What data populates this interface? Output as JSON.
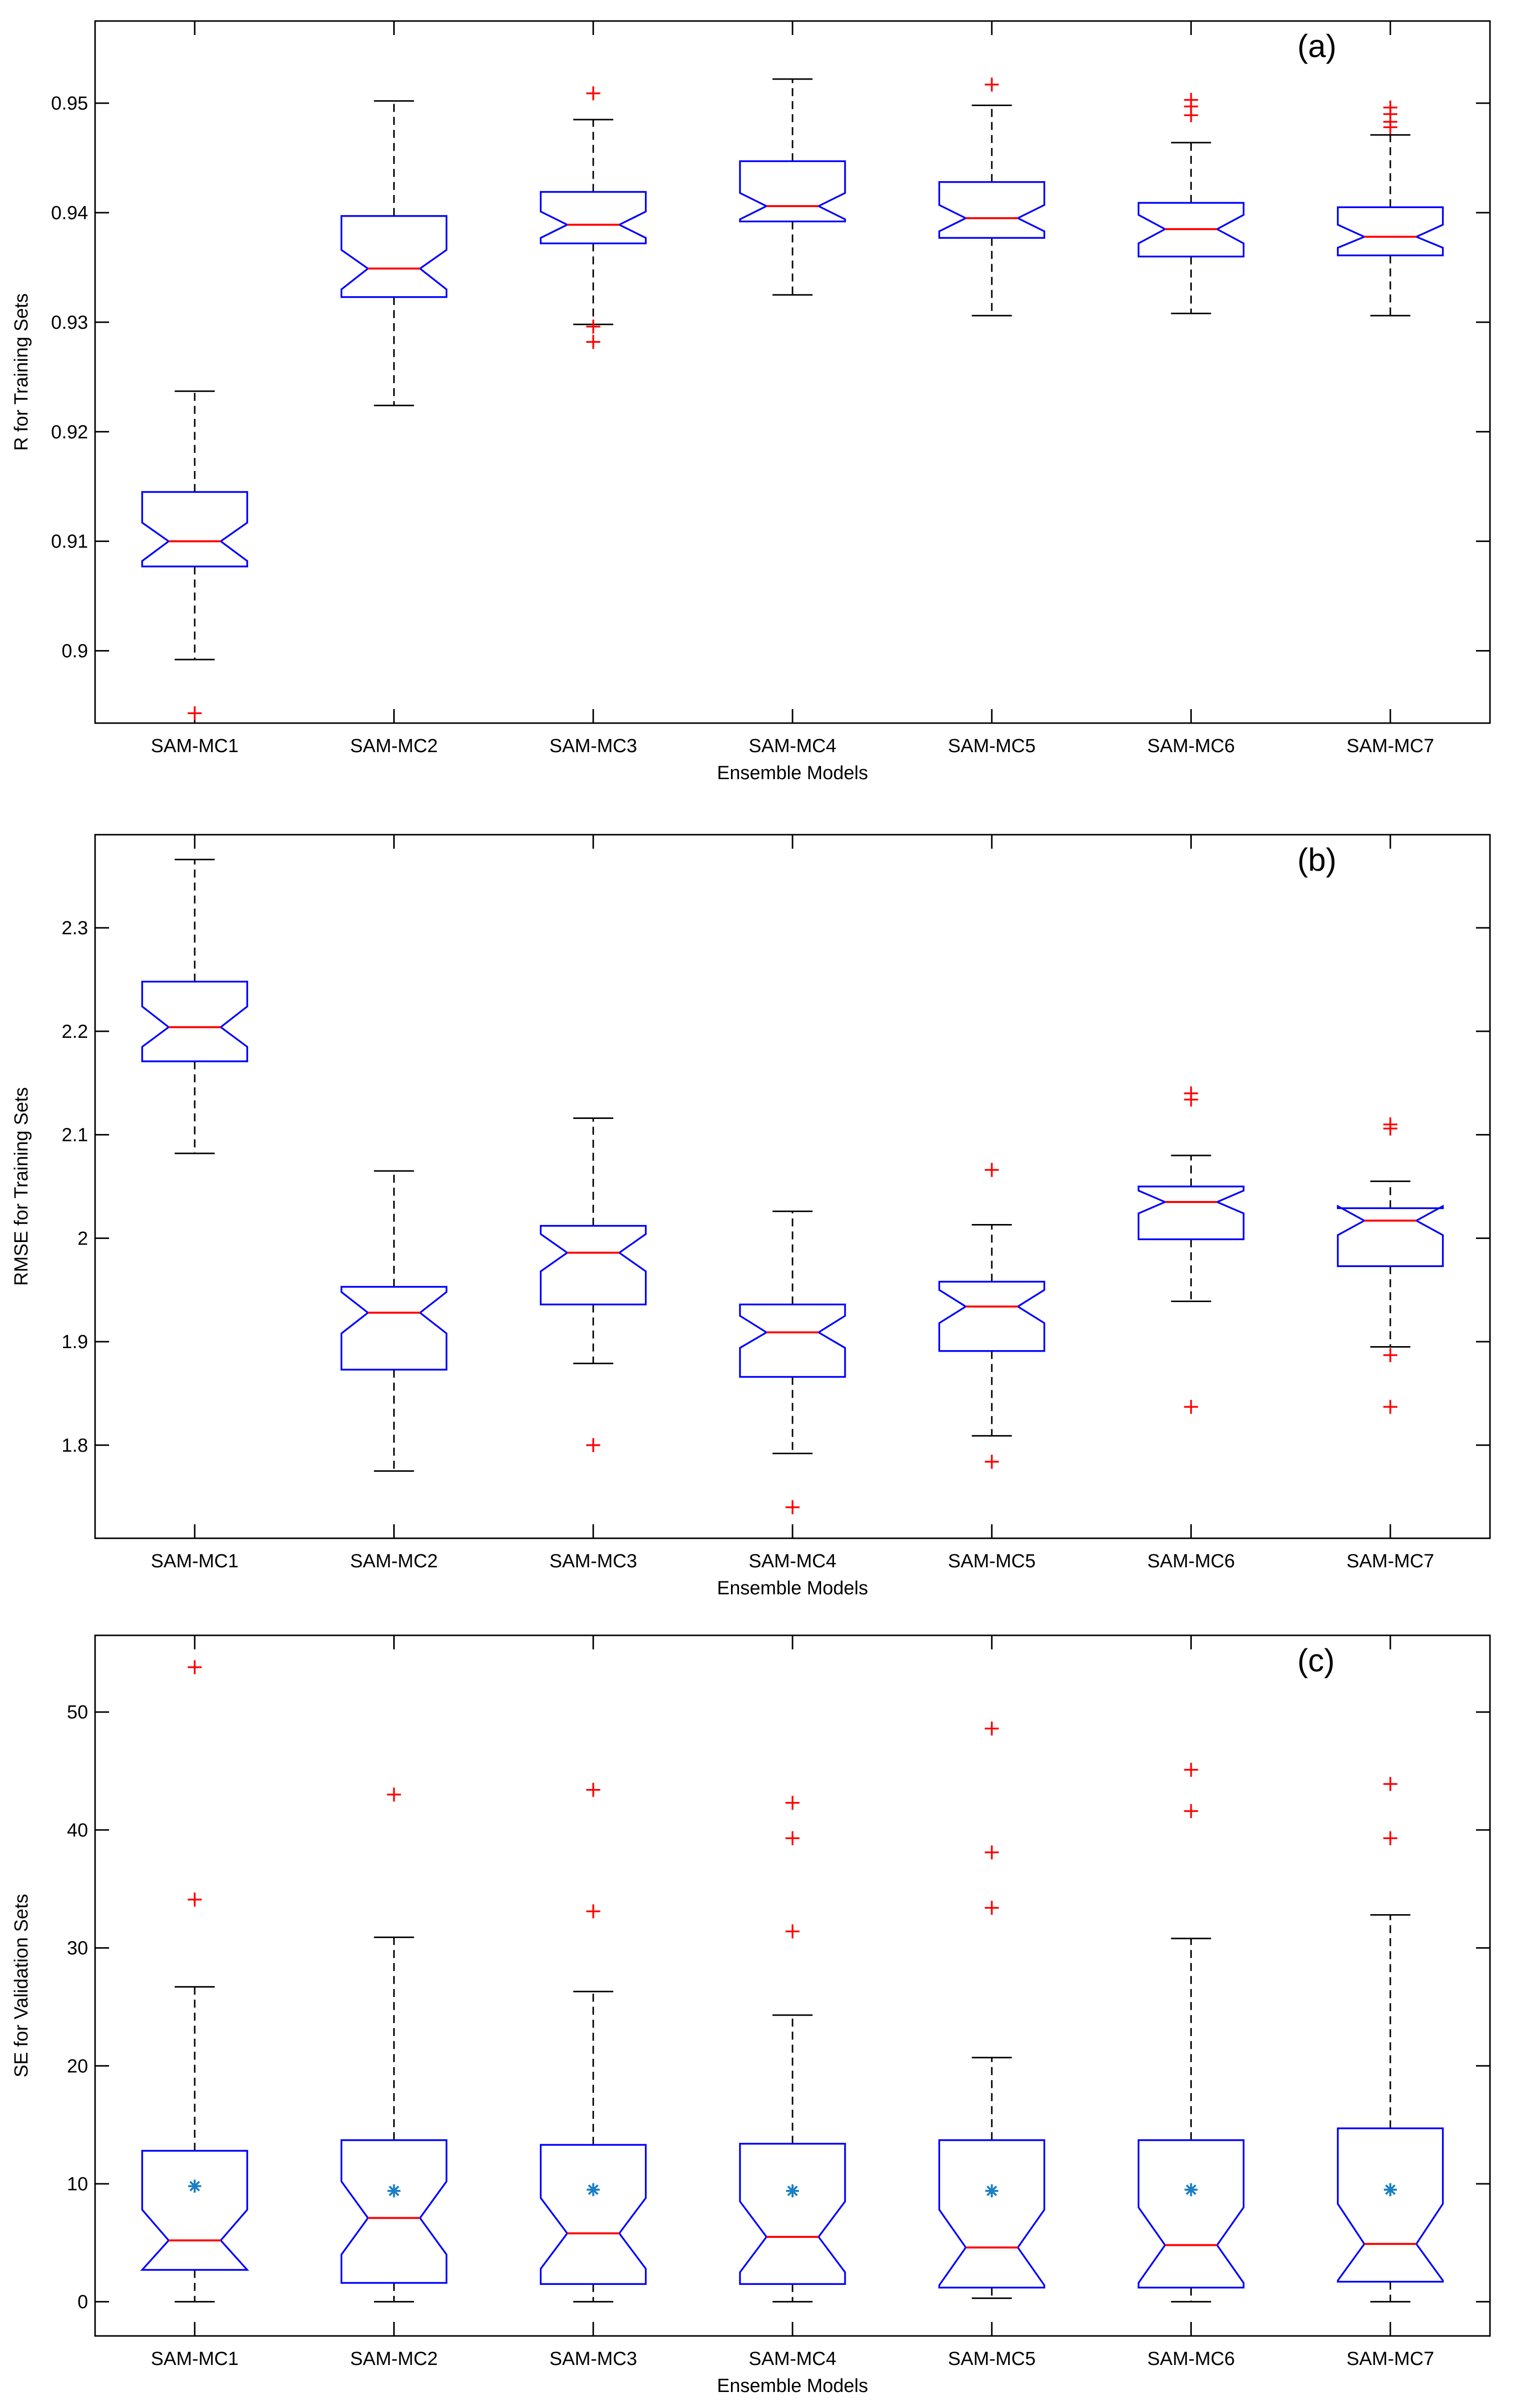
{
  "colors": {
    "box": "#0000ff",
    "median": "#ff0000",
    "outlier": "#ff0000",
    "whisker": "#000000",
    "mean_marker": "#1a7fc4",
    "axes": "#000000"
  },
  "chart_data": [
    {
      "type": "boxplot",
      "panel_label": "(a)",
      "ylabel": "R for Training Sets",
      "xlabel": "Ensemble Models",
      "categories": [
        "SAM-MC1",
        "SAM-MC2",
        "SAM-MC3",
        "SAM-MC4",
        "SAM-MC5",
        "SAM-MC6",
        "SAM-MC7"
      ],
      "ylim": [
        0.8934,
        0.9575
      ],
      "yticks": [
        0.9,
        0.91,
        0.92,
        0.93,
        0.94,
        0.95
      ],
      "ytick_labels": [
        "0.9",
        "0.91",
        "0.92",
        "0.93",
        "0.94",
        "0.95"
      ],
      "notched": true,
      "boxes": [
        {
          "whisker_low": 0.8992,
          "q1": 0.9077,
          "median": 0.91,
          "q3": 0.9145,
          "whisker_high": 0.9237,
          "notch_low": 0.9082,
          "notch_high": 0.9117,
          "outliers": [
            0.8943
          ]
        },
        {
          "whisker_low": 0.9224,
          "q1": 0.9323,
          "median": 0.9349,
          "q3": 0.9397,
          "whisker_high": 0.9502,
          "notch_low": 0.933,
          "notch_high": 0.9366,
          "outliers": []
        },
        {
          "whisker_low": 0.9298,
          "q1": 0.9372,
          "median": 0.9389,
          "q3": 0.9419,
          "whisker_high": 0.9485,
          "notch_low": 0.9377,
          "notch_high": 0.9401,
          "outliers": [
            0.9509,
            0.9296,
            0.9282
          ]
        },
        {
          "whisker_low": 0.9325,
          "q1": 0.9392,
          "median": 0.9406,
          "q3": 0.9447,
          "whisker_high": 0.9522,
          "notch_low": 0.9394,
          "notch_high": 0.9418,
          "outliers": []
        },
        {
          "whisker_low": 0.9306,
          "q1": 0.9377,
          "median": 0.9395,
          "q3": 0.9428,
          "whisker_high": 0.9498,
          "notch_low": 0.9383,
          "notch_high": 0.9407,
          "outliers": [
            0.9517
          ]
        },
        {
          "whisker_low": 0.9308,
          "q1": 0.936,
          "median": 0.9385,
          "q3": 0.9409,
          "whisker_high": 0.9464,
          "notch_low": 0.9372,
          "notch_high": 0.9398,
          "outliers": [
            0.9503,
            0.9497,
            0.9489
          ]
        },
        {
          "whisker_low": 0.9306,
          "q1": 0.9361,
          "median": 0.9378,
          "q3": 0.9405,
          "whisker_high": 0.9471,
          "notch_low": 0.9368,
          "notch_high": 0.9389,
          "outliers": [
            0.9496,
            0.949,
            0.9483,
            0.9478
          ]
        }
      ]
    },
    {
      "type": "boxplot",
      "panel_label": "(b)",
      "ylabel": "RMSE for Training Sets",
      "xlabel": "Ensemble Models",
      "categories": [
        "SAM-MC1",
        "SAM-MC2",
        "SAM-MC3",
        "SAM-MC4",
        "SAM-MC5",
        "SAM-MC6",
        "SAM-MC7"
      ],
      "ylim": [
        1.71,
        2.39
      ],
      "yticks": [
        1.8,
        1.9,
        2.0,
        2.1,
        2.2,
        2.3
      ],
      "ytick_labels": [
        "1.8",
        "1.9",
        "2",
        "2.1",
        "2.2",
        "2.3"
      ],
      "notched": true,
      "boxes": [
        {
          "whisker_low": 2.082,
          "q1": 2.171,
          "median": 2.204,
          "q3": 2.248,
          "whisker_high": 2.366,
          "notch_low": 2.185,
          "notch_high": 2.224,
          "outliers": []
        },
        {
          "whisker_low": 1.775,
          "q1": 1.873,
          "median": 1.928,
          "q3": 1.953,
          "whisker_high": 2.065,
          "notch_low": 1.908,
          "notch_high": 1.948,
          "outliers": []
        },
        {
          "whisker_low": 1.879,
          "q1": 1.936,
          "median": 1.986,
          "q3": 2.012,
          "whisker_high": 2.116,
          "notch_low": 1.968,
          "notch_high": 2.004,
          "outliers": [
            1.8
          ]
        },
        {
          "whisker_low": 1.792,
          "q1": 1.866,
          "median": 1.909,
          "q3": 1.936,
          "whisker_high": 2.026,
          "notch_low": 1.894,
          "notch_high": 1.925,
          "outliers": [
            1.74
          ]
        },
        {
          "whisker_low": 1.809,
          "q1": 1.891,
          "median": 1.934,
          "q3": 1.958,
          "whisker_high": 2.013,
          "notch_low": 1.918,
          "notch_high": 1.95,
          "outliers": [
            2.066,
            1.784
          ]
        },
        {
          "whisker_low": 1.939,
          "q1": 1.999,
          "median": 2.035,
          "q3": 2.05,
          "whisker_high": 2.08,
          "notch_low": 2.024,
          "notch_high": 2.046,
          "outliers": [
            2.14,
            2.134,
            1.837
          ]
        },
        {
          "whisker_low": 1.895,
          "q1": 1.973,
          "median": 2.017,
          "q3": 2.029,
          "whisker_high": 2.055,
          "notch_low": 2.003,
          "notch_high": 2.031,
          "outliers": [
            2.11,
            2.106,
            1.887,
            1.837
          ]
        }
      ]
    },
    {
      "type": "boxplot",
      "panel_label": "(c)",
      "ylabel": "SE for Validation Sets",
      "xlabel": "Ensemble Models",
      "categories": [
        "SAM-MC1",
        "SAM-MC2",
        "SAM-MC3",
        "SAM-MC4",
        "SAM-MC5",
        "SAM-MC6",
        "SAM-MC7"
      ],
      "ylim": [
        -2.9,
        56.5
      ],
      "yticks": [
        0,
        10,
        20,
        30,
        40,
        50
      ],
      "ytick_labels": [
        "0",
        "10",
        "20",
        "30",
        "40",
        "50"
      ],
      "notched": true,
      "boxes": [
        {
          "whisker_low": 0.0,
          "q1": 2.7,
          "median": 5.2,
          "q3": 12.8,
          "whisker_high": 26.7,
          "notch_low": 2.7,
          "notch_high": 7.8,
          "mean": 9.8,
          "outliers": [
            53.8,
            34.1
          ]
        },
        {
          "whisker_low": 0.0,
          "q1": 1.6,
          "median": 7.1,
          "q3": 13.7,
          "whisker_high": 30.9,
          "notch_low": 4.0,
          "notch_high": 10.2,
          "mean": 9.4,
          "outliers": [
            43.0
          ]
        },
        {
          "whisker_low": 0.0,
          "q1": 1.5,
          "median": 5.8,
          "q3": 13.3,
          "whisker_high": 26.3,
          "notch_low": 2.8,
          "notch_high": 8.8,
          "mean": 9.5,
          "outliers": [
            43.4,
            33.1
          ]
        },
        {
          "whisker_low": 0.0,
          "q1": 1.5,
          "median": 5.5,
          "q3": 13.4,
          "whisker_high": 24.3,
          "notch_low": 2.5,
          "notch_high": 8.5,
          "mean": 9.4,
          "outliers": [
            42.3,
            39.3,
            31.4
          ]
        },
        {
          "whisker_low": 0.3,
          "q1": 1.2,
          "median": 4.6,
          "q3": 13.7,
          "whisker_high": 20.7,
          "notch_low": 1.4,
          "notch_high": 7.8,
          "mean": 9.4,
          "outliers": [
            48.6,
            38.1,
            33.4
          ]
        },
        {
          "whisker_low": 0.0,
          "q1": 1.2,
          "median": 4.8,
          "q3": 13.7,
          "whisker_high": 30.8,
          "notch_low": 1.6,
          "notch_high": 8.0,
          "mean": 9.5,
          "outliers": [
            45.1,
            41.6
          ]
        },
        {
          "whisker_low": 0.0,
          "q1": 1.7,
          "median": 4.9,
          "q3": 14.7,
          "whisker_high": 32.8,
          "notch_low": 1.8,
          "notch_high": 8.3,
          "mean": 9.5,
          "outliers": [
            43.9,
            39.3
          ]
        }
      ]
    }
  ]
}
